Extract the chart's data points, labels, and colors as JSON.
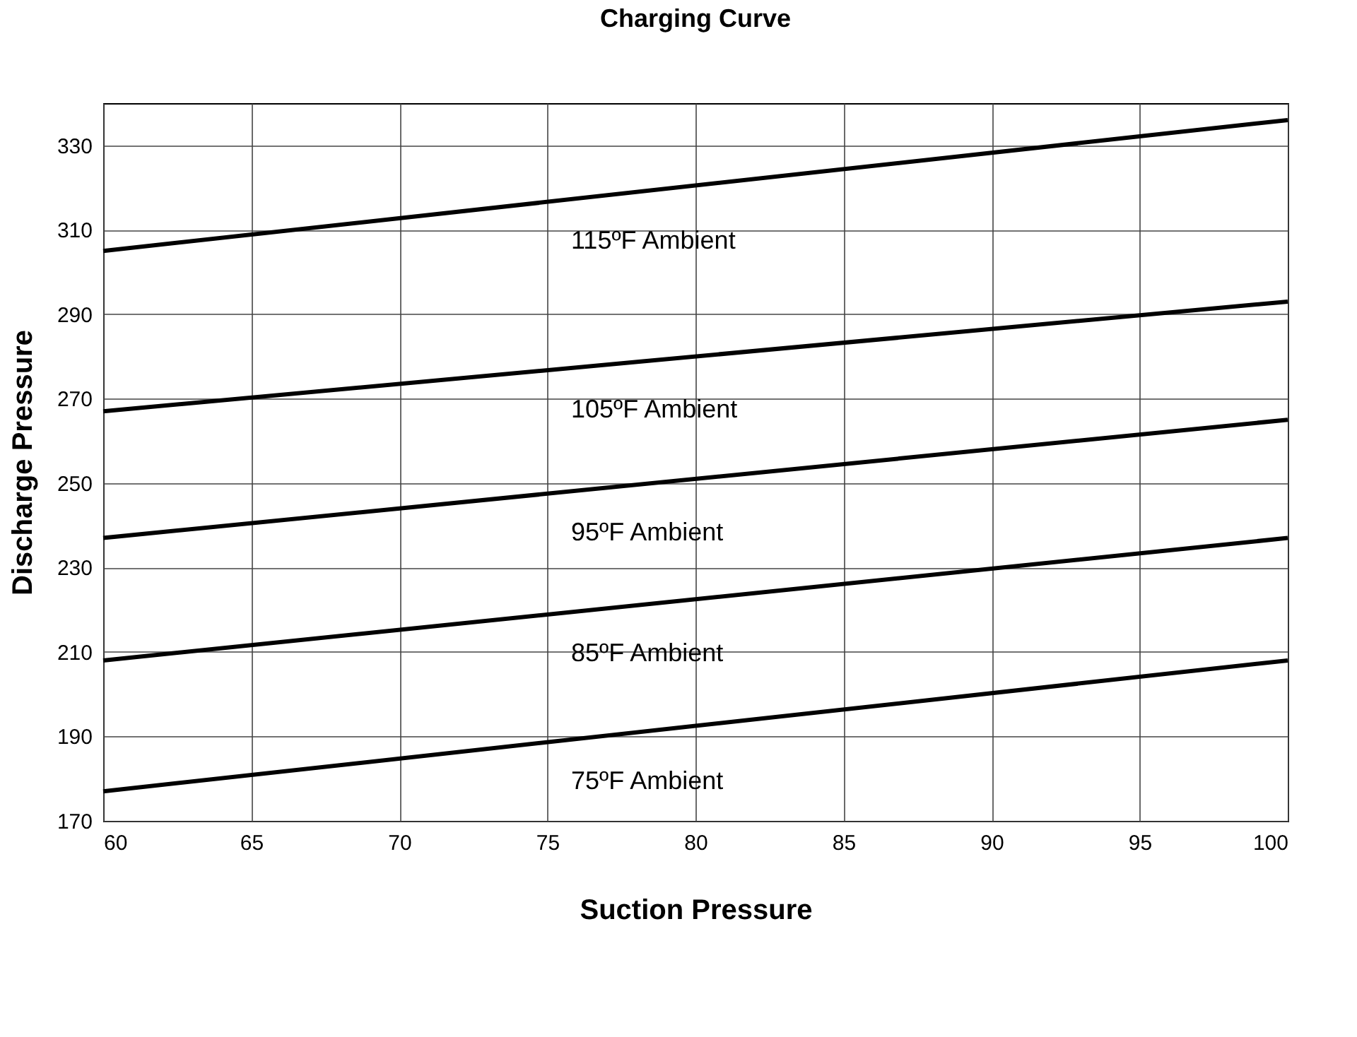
{
  "chart_data": {
    "type": "line",
    "title": "Charging Curve",
    "xlabel": "Suction Pressure",
    "ylabel": "Discharge Pressure",
    "x": [
      60,
      100
    ],
    "series": [
      {
        "name": "115ºF Ambient",
        "color": "#000000",
        "values": [
          305,
          336
        ]
      },
      {
        "name": "105ºF Ambient",
        "color": "#000000",
        "values": [
          267,
          293
        ]
      },
      {
        "name": "95ºF Ambient",
        "color": "#000000",
        "values": [
          237,
          265
        ]
      },
      {
        "name": "85ºF Ambient",
        "color": "#000000",
        "values": [
          208,
          237
        ]
      },
      {
        "name": "75ºF Ambient",
        "color": "#000000",
        "values": [
          177,
          208
        ]
      }
    ],
    "xlim": [
      60,
      100
    ],
    "xticks": [
      60,
      65,
      70,
      75,
      80,
      85,
      90,
      95,
      100
    ],
    "ylim": [
      170,
      340
    ],
    "yticks": [
      170,
      190,
      210,
      230,
      250,
      270,
      290,
      310,
      330
    ],
    "grid": true,
    "legend": false,
    "marker": "none",
    "line_style": "solid"
  }
}
